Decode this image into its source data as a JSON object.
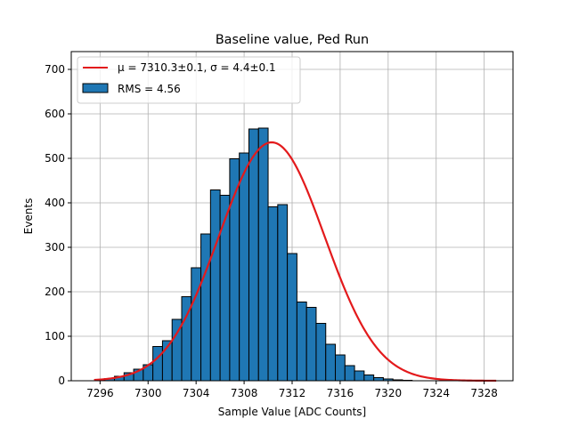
{
  "chart_data": {
    "type": "bar",
    "title": "Baseline value, Ped Run",
    "xlabel": "Sample Value [ADC Counts]",
    "ylabel": "Events",
    "xlim": [
      7293.6,
      7330.4
    ],
    "ylim": [
      0,
      740
    ],
    "xticks": [
      7296,
      7300,
      7304,
      7308,
      7312,
      7316,
      7320,
      7324,
      7328
    ],
    "yticks": [
      0,
      100,
      200,
      300,
      400,
      500,
      600,
      700
    ],
    "grid": true,
    "legend_position": "top-left",
    "bin_width": 0.8,
    "bins": [
      {
        "x": 7295.6,
        "count": 2
      },
      {
        "x": 7296.4,
        "count": 5
      },
      {
        "x": 7297.2,
        "count": 10
      },
      {
        "x": 7298.0,
        "count": 18
      },
      {
        "x": 7298.8,
        "count": 26
      },
      {
        "x": 7299.6,
        "count": 36
      },
      {
        "x": 7300.4,
        "count": 77
      },
      {
        "x": 7301.2,
        "count": 90
      },
      {
        "x": 7302.0,
        "count": 138
      },
      {
        "x": 7302.8,
        "count": 189
      },
      {
        "x": 7303.6,
        "count": 254
      },
      {
        "x": 7304.4,
        "count": 330
      },
      {
        "x": 7305.2,
        "count": 429
      },
      {
        "x": 7306.0,
        "count": 417
      },
      {
        "x": 7306.8,
        "count": 499
      },
      {
        "x": 7307.6,
        "count": 512
      },
      {
        "x": 7308.4,
        "count": 566
      },
      {
        "x": 7309.2,
        "count": 568
      },
      {
        "x": 7310.0,
        "count": 391
      },
      {
        "x": 7310.8,
        "count": 396
      },
      {
        "x": 7311.6,
        "count": 286
      },
      {
        "x": 7312.4,
        "count": 177
      },
      {
        "x": 7313.2,
        "count": 165
      },
      {
        "x": 7314.0,
        "count": 129
      },
      {
        "x": 7314.8,
        "count": 82
      },
      {
        "x": 7315.6,
        "count": 58
      },
      {
        "x": 7316.4,
        "count": 34
      },
      {
        "x": 7317.2,
        "count": 22
      },
      {
        "x": 7318.0,
        "count": 13
      },
      {
        "x": 7318.8,
        "count": 7
      },
      {
        "x": 7319.6,
        "count": 4
      },
      {
        "x": 7320.4,
        "count": 2
      },
      {
        "x": 7321.2,
        "count": 1
      }
    ],
    "fit": {
      "type": "gaussian",
      "mu": 7310.3,
      "sigma": 4.4,
      "amplitude": 536,
      "x_range": [
        7295.5,
        7329
      ]
    },
    "legend": [
      {
        "label": "μ = 7310.3±0.1, σ = 4.4±0.1",
        "kind": "line",
        "color": "#e31a1c"
      },
      {
        "label": "RMS = 4.56",
        "kind": "patch",
        "color": "#1f77b4"
      }
    ],
    "colors": {
      "bar_fill": "#1f77b4",
      "bar_edge": "#000000",
      "fit_line": "#e31a1c",
      "grid": "#b0b0b0"
    }
  }
}
